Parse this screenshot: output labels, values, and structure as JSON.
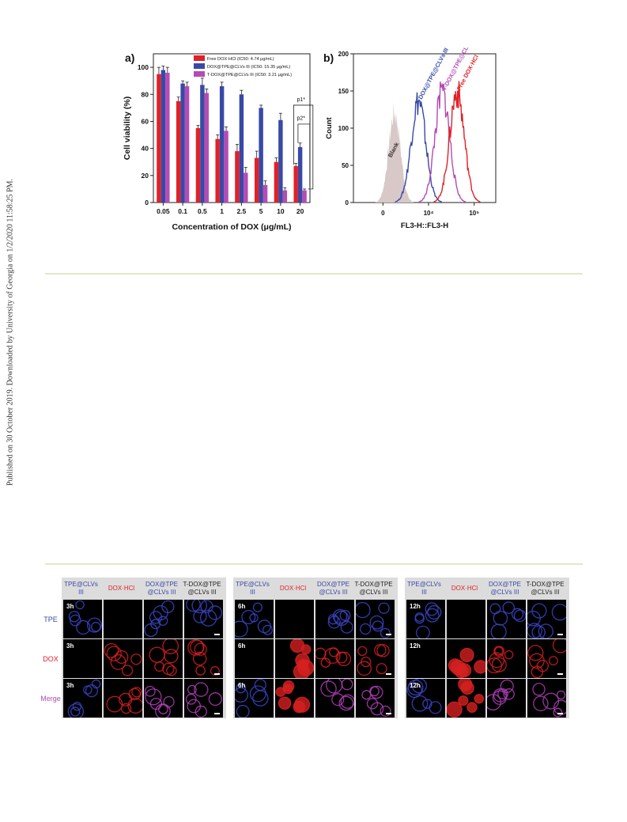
{
  "margin_note": "Published on 30 October 2019. Downloaded by University of Georgia on 1/2/2020 11:58:25 PM.",
  "colors": {
    "free": "#e02126",
    "dox_tpe": "#3849a6",
    "t_dox": "#b44cb4",
    "blank": "#d8c8c8",
    "rule": "#e3e6c8"
  },
  "chart_data": [
    {
      "type": "bar",
      "panel_label": "a)",
      "categories": [
        "0.05",
        "0.1",
        "0.5",
        "1",
        "2.5",
        "5",
        "10",
        "20"
      ],
      "xlabel": "Concentration of DOX (μg/mL)",
      "ylabel": "Cell viability (%)",
      "ylim": [
        0,
        110
      ],
      "yticks": [
        "0",
        "20",
        "40",
        "60",
        "80",
        "100"
      ],
      "legend_position": "top-right",
      "series": [
        {
          "name": "Free DOX·HCl (IC50: 4.74 μg/mL)",
          "color": "#e02126",
          "values": [
            95,
            75,
            55,
            47,
            38,
            33,
            30,
            27
          ],
          "errors": [
            5,
            3,
            2,
            3,
            5,
            5,
            3,
            2
          ]
        },
        {
          "name": "DOX@TPE@CLVs III (IC50: 15.35 μg/mL)",
          "color": "#3849a6",
          "values": [
            98,
            88,
            87,
            86,
            80,
            70,
            61,
            41
          ],
          "errors": [
            3,
            2,
            5,
            3,
            3,
            2,
            5,
            3
          ]
        },
        {
          "name": "T-DOX@TPE@CLVs III (IC50: 3.21 μg/mL)",
          "color": "#b44cb4",
          "values": [
            96,
            86,
            81,
            53,
            22,
            13,
            9,
            9
          ],
          "errors": [
            4,
            3,
            3,
            3,
            4,
            3,
            2,
            1
          ]
        }
      ],
      "annotations": [
        "p1*",
        "p2*"
      ]
    },
    {
      "type": "line",
      "panel_label": "b)",
      "xlabel": "FL3-H::FL3-H",
      "ylabel": "Count",
      "ylim": [
        0,
        200
      ],
      "yticks": [
        "0",
        "50",
        "100",
        "150",
        "200"
      ],
      "xticks": [
        "0",
        "10⁴",
        "10⁵"
      ],
      "series": [
        {
          "name": "Blank",
          "color": "#d8c8c8",
          "peak_x": 1800,
          "peak_count": 120
        },
        {
          "name": "DOX@TPE@CLVs III",
          "color": "#3849a6",
          "peak_x": 6000,
          "peak_count": 136
        },
        {
          "name": "T-DOX@TPE@CLVs III",
          "color": "#b44cb4",
          "peak_x": 20000,
          "peak_count": 148
        },
        {
          "name": "Free DOX·HCl",
          "color": "#e02126",
          "peak_x": 42000,
          "peak_count": 148
        }
      ]
    }
  ],
  "microscopy": {
    "panels": [
      {
        "time": "3h",
        "headers": [
          "TPE@CLVs III",
          "DOX·HCl",
          "DOX@TPE @CLVs III",
          "T-DOX@TPE @CLVs III"
        ]
      },
      {
        "time": "6h",
        "headers": [
          "TPE@CLVs III",
          "DOX·HCl",
          "DOX@TPE @CLVs III",
          "T-DOX@TPE @CLVs III"
        ]
      },
      {
        "time": "12h",
        "headers": [
          "TPE@CLVs III",
          "DOX·HCl",
          "DOX@TPE @CLVs III",
          "T-DOX@TPE @CLVs III"
        ]
      }
    ],
    "rows": [
      {
        "label": "TPE",
        "color": "#3849a6"
      },
      {
        "label": "DOX",
        "color": "#e02126"
      },
      {
        "label": "Merge",
        "color": "#b44cb4"
      }
    ],
    "header_colors": [
      "#3849a6",
      "#e02126",
      "#3849a6",
      "#222222"
    ]
  }
}
